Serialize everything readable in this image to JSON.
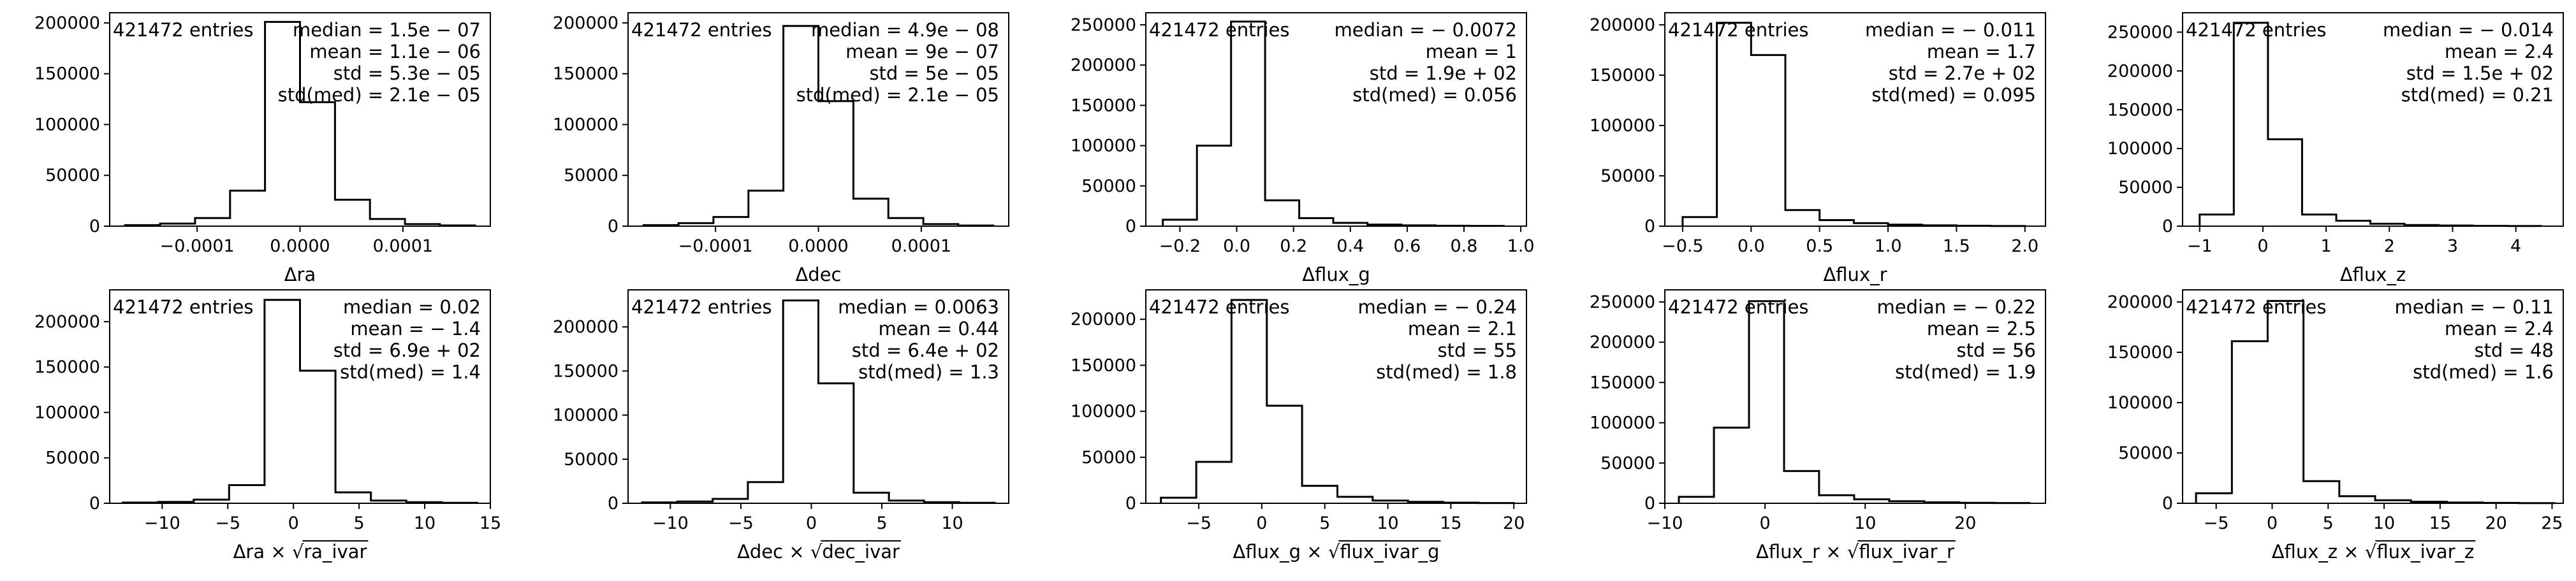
{
  "chart_data": [
    {
      "type": "histogram",
      "xlabel": "Δra",
      "xlim": [
        -0.000185,
        0.000185
      ],
      "ylim": [
        0,
        210000
      ],
      "xticks": [
        -0.0001,
        0.0,
        0.0001
      ],
      "xtick_labels": [
        "−0.0001",
        "0.0000",
        "0.0001"
      ],
      "yticks": [
        0,
        50000,
        100000,
        150000,
        200000
      ],
      "ytick_labels": [
        "0",
        "50000",
        "100000",
        "150000",
        "200000"
      ],
      "bin_edges": [
        -0.00017,
        -0.000136,
        -0.000102,
        -6.8e-05,
        -3.4e-05,
        0.0,
        3.4e-05,
        6.8e-05,
        0.000102,
        0.000136,
        0.00017
      ],
      "counts": [
        1000,
        2500,
        8000,
        35000,
        201000,
        122000,
        26000,
        7000,
        2000,
        700
      ],
      "entries_text": "421472 entries",
      "stats": [
        "median = 1.5e − 07",
        "mean = 1.1e − 06",
        "std = 5.3e − 05",
        "std(med) = 2.1e − 05"
      ]
    },
    {
      "type": "histogram",
      "xlabel": "Δdec",
      "xlim": [
        -0.000185,
        0.000185
      ],
      "ylim": [
        0,
        210000
      ],
      "xticks": [
        -0.0001,
        0.0,
        0.0001
      ],
      "xtick_labels": [
        "−0.0001",
        "0.0000",
        "0.0001"
      ],
      "yticks": [
        0,
        50000,
        100000,
        150000,
        200000
      ],
      "ytick_labels": [
        "0",
        "50000",
        "100000",
        "150000",
        "200000"
      ],
      "bin_edges": [
        -0.00017,
        -0.000136,
        -0.000102,
        -6.8e-05,
        -3.4e-05,
        0.0,
        3.4e-05,
        6.8e-05,
        0.000102,
        0.000136,
        0.00017
      ],
      "counts": [
        1000,
        3000,
        9000,
        35000,
        197000,
        123000,
        27000,
        8000,
        2000,
        600
      ],
      "entries_text": "421472 entries",
      "stats": [
        "median = 4.9e − 08",
        "mean = 9e − 07",
        "std = 5e − 05",
        "std(med) = 2.1e − 05"
      ]
    },
    {
      "type": "histogram",
      "xlabel": "Δflux_g",
      "xlim": [
        -0.32,
        1.02
      ],
      "ylim": [
        0,
        265000
      ],
      "xticks": [
        -0.2,
        0.0,
        0.2,
        0.4,
        0.6,
        0.8,
        1.0
      ],
      "xtick_labels": [
        "−0.2",
        "0.0",
        "0.2",
        "0.4",
        "0.6",
        "0.8",
        "1.0"
      ],
      "yticks": [
        0,
        50000,
        100000,
        150000,
        200000,
        250000
      ],
      "ytick_labels": [
        "0",
        "50000",
        "100000",
        "150000",
        "200000",
        "250000"
      ],
      "bin_edges": [
        -0.26,
        -0.14,
        -0.02,
        0.1,
        0.22,
        0.34,
        0.46,
        0.58,
        0.7,
        0.82,
        0.94
      ],
      "counts": [
        8000,
        100000,
        254000,
        32000,
        10000,
        4000,
        2000,
        1000,
        500,
        300
      ],
      "entries_text": "421472 entries",
      "stats": [
        "median = − 0.0072",
        "mean = 1",
        "std = 1.9e + 02",
        "std(med) = 0.056"
      ]
    },
    {
      "type": "histogram",
      "xlabel": "Δflux_r",
      "xlim": [
        -0.63,
        2.15
      ],
      "ylim": [
        0,
        212000
      ],
      "xticks": [
        -0.5,
        0.0,
        0.5,
        1.0,
        1.5,
        2.0
      ],
      "xtick_labels": [
        "−0.5",
        "0.0",
        "0.5",
        "1.0",
        "1.5",
        "2.0"
      ],
      "yticks": [
        0,
        50000,
        100000,
        150000,
        200000
      ],
      "ytick_labels": [
        "0",
        "50000",
        "100000",
        "150000",
        "200000"
      ],
      "bin_edges": [
        -0.5,
        -0.25,
        0.0,
        0.25,
        0.5,
        0.75,
        1.0,
        1.25,
        1.5,
        1.75,
        2.0
      ],
      "counts": [
        9000,
        202000,
        170000,
        16000,
        6000,
        3000,
        1500,
        800,
        400,
        200
      ],
      "entries_text": "421472 entries",
      "stats": [
        "median = − 0.011",
        "mean = 1.7",
        "std = 2.7e + 02",
        "std(med) = 0.095"
      ]
    },
    {
      "type": "histogram",
      "xlabel": "Δflux_z",
      "xlim": [
        -1.27,
        4.75
      ],
      "ylim": [
        0,
        275000
      ],
      "xticks": [
        -1,
        0,
        1,
        2,
        3,
        4
      ],
      "xtick_labels": [
        "−1",
        "0",
        "1",
        "2",
        "3",
        "4"
      ],
      "yticks": [
        0,
        50000,
        100000,
        150000,
        200000,
        250000
      ],
      "ytick_labels": [
        "0",
        "50000",
        "100000",
        "150000",
        "200000",
        "250000"
      ],
      "bin_edges": [
        -1.0,
        -0.46,
        0.08,
        0.62,
        1.16,
        1.7,
        2.24,
        2.78,
        3.32,
        3.86,
        4.4
      ],
      "counts": [
        15000,
        262000,
        112000,
        15000,
        7000,
        3000,
        1500,
        800,
        400,
        200
      ],
      "entries_text": "421472 entries",
      "stats": [
        "median = − 0.014",
        "mean = 2.4",
        "std = 1.5e + 02",
        "std(med) = 0.21"
      ]
    },
    {
      "type": "histogram",
      "xlabel_prefix": "Δra × ",
      "xlabel_sqrt": "ra_ivar",
      "xlim": [
        -14,
        15
      ],
      "ylim": [
        0,
        235000
      ],
      "xticks": [
        -10,
        -5,
        0,
        5,
        10,
        15
      ],
      "xtick_labels": [
        "−10",
        "−5",
        "0",
        "5",
        "10",
        "15"
      ],
      "yticks": [
        0,
        50000,
        100000,
        150000,
        200000
      ],
      "ytick_labels": [
        "0",
        "50000",
        "100000",
        "150000",
        "200000"
      ],
      "bin_edges": [
        -13.0,
        -10.3,
        -7.6,
        -4.9,
        -2.2,
        0.5,
        3.2,
        5.9,
        8.6,
        11.3,
        14.0
      ],
      "counts": [
        800,
        1500,
        4000,
        20000,
        224000,
        146000,
        12000,
        3000,
        1200,
        500
      ],
      "entries_text": "421472 entries",
      "stats": [
        "median = 0.02",
        "mean = − 1.4",
        "std = 6.9e + 02",
        "std(med) = 1.4"
      ]
    },
    {
      "type": "histogram",
      "xlabel_prefix": "Δdec × ",
      "xlabel_sqrt": "dec_ivar",
      "xlim": [
        -13,
        14
      ],
      "ylim": [
        0,
        242000
      ],
      "xticks": [
        -10,
        -5,
        0,
        5,
        10
      ],
      "xtick_labels": [
        "−10",
        "−5",
        "0",
        "5",
        "10"
      ],
      "yticks": [
        0,
        50000,
        100000,
        150000,
        200000
      ],
      "ytick_labels": [
        "0",
        "50000",
        "100000",
        "150000",
        "200000"
      ],
      "bin_edges": [
        -12.0,
        -9.5,
        -7.0,
        -4.5,
        -2.0,
        0.5,
        3.0,
        5.5,
        8.0,
        10.5,
        13.0
      ],
      "counts": [
        1000,
        2000,
        5000,
        24000,
        230000,
        136000,
        12000,
        3000,
        1200,
        500
      ],
      "entries_text": "421472 entries",
      "stats": [
        "median = 0.0063",
        "mean = 0.44",
        "std = 6.4e + 02",
        "std(med) = 1.3"
      ]
    },
    {
      "type": "histogram",
      "xlabel_prefix": "Δflux_g × ",
      "xlabel_sqrt": "flux_ivar_g",
      "xlim": [
        -9.2,
        21
      ],
      "ylim": [
        0,
        232000
      ],
      "xticks": [
        -5,
        0,
        5,
        10,
        15,
        20
      ],
      "xtick_labels": [
        "−5",
        "0",
        "5",
        "10",
        "15",
        "20"
      ],
      "yticks": [
        0,
        50000,
        100000,
        150000,
        200000
      ],
      "ytick_labels": [
        "0",
        "50000",
        "100000",
        "150000",
        "200000"
      ],
      "bin_edges": [
        -8.0,
        -5.2,
        -2.4,
        0.4,
        3.2,
        6.0,
        8.8,
        11.6,
        14.4,
        17.2,
        20.0
      ],
      "counts": [
        6000,
        45000,
        221000,
        106000,
        19000,
        7000,
        3000,
        1500,
        700,
        300
      ],
      "entries_text": "421472 entries",
      "stats": [
        "median = − 0.24",
        "mean = 2.1",
        "std = 55",
        "std(med) = 1.8"
      ]
    },
    {
      "type": "histogram",
      "xlabel_prefix": "Δflux_r × ",
      "xlabel_sqrt": "flux_ivar_r",
      "xlim": [
        -10,
        28
      ],
      "ylim": [
        0,
        265000
      ],
      "xticks": [
        -10,
        0,
        10,
        20
      ],
      "xtick_labels": [
        "−10",
        "0",
        "10",
        "20"
      ],
      "yticks": [
        0,
        50000,
        100000,
        150000,
        200000,
        250000
      ],
      "ytick_labels": [
        "0",
        "50000",
        "100000",
        "150000",
        "200000",
        "250000"
      ],
      "bin_edges": [
        -8.6,
        -5.1,
        -1.6,
        1.9,
        5.4,
        8.9,
        12.4,
        15.9,
        19.4,
        22.9,
        26.4
      ],
      "counts": [
        8000,
        94000,
        251000,
        40000,
        10000,
        5000,
        2500,
        1200,
        600,
        300
      ],
      "entries_text": "421472 entries",
      "stats": [
        "median = − 0.22",
        "mean = 2.5",
        "std = 56",
        "std(med) = 1.9"
      ]
    },
    {
      "type": "histogram",
      "xlabel_prefix": "Δflux_z × ",
      "xlabel_sqrt": "flux_ivar_z",
      "xlim": [
        -8,
        26
      ],
      "ylim": [
        0,
        212000
      ],
      "xticks": [
        -5,
        0,
        5,
        10,
        15,
        20,
        25
      ],
      "xtick_labels": [
        "−5",
        "0",
        "5",
        "10",
        "15",
        "20",
        "25"
      ],
      "yticks": [
        0,
        50000,
        100000,
        150000,
        200000
      ],
      "ytick_labels": [
        "0",
        "50000",
        "100000",
        "150000",
        "200000"
      ],
      "bin_edges": [
        -6.8,
        -3.6,
        -0.4,
        2.8,
        6.0,
        9.2,
        12.4,
        15.6,
        18.8,
        22.0,
        25.2
      ],
      "counts": [
        10000,
        161000,
        201000,
        22000,
        7000,
        3000,
        1500,
        800,
        400,
        200
      ],
      "entries_text": "421472 entries",
      "stats": [
        "median = − 0.11",
        "mean = 2.4",
        "std = 48",
        "std(med) = 1.6"
      ]
    }
  ]
}
